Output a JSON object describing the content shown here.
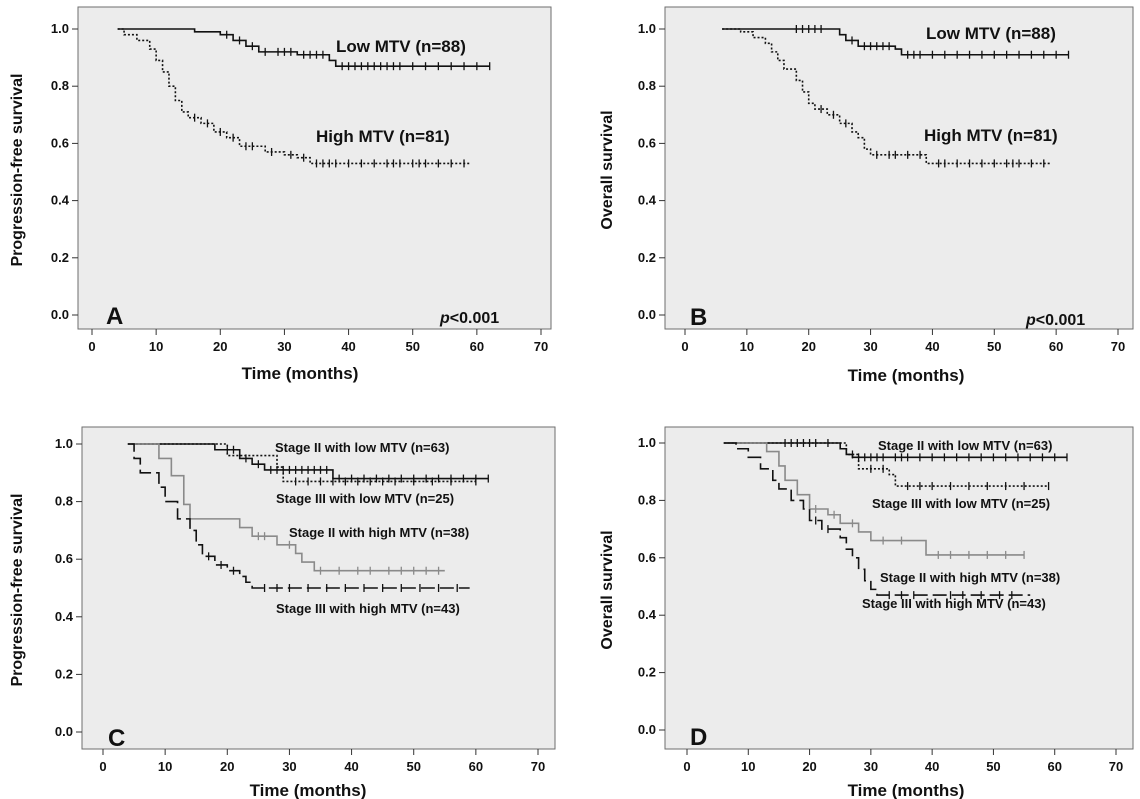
{
  "chart_data": [
    {
      "type": "line",
      "panel": "A",
      "ylabel": "Progression-free survival",
      "xlabel": "Time (months)",
      "xlim": [
        0,
        70
      ],
      "ylim": [
        0,
        1.0
      ],
      "xticks": [
        "0",
        "10",
        "20",
        "30",
        "40",
        "50",
        "60",
        "70"
      ],
      "yticks": [
        "0.0",
        "0.2",
        "0.4",
        "0.6",
        "0.8",
        "1.0"
      ],
      "annotation": "p<0.001",
      "series": [
        {
          "name": "Low MTV (n=88)",
          "style": "solid",
          "color": "#111111",
          "steps": [
            [
              4,
              1.0
            ],
            [
              16,
              0.99
            ],
            [
              20,
              0.98
            ],
            [
              22,
              0.96
            ],
            [
              24,
              0.94
            ],
            [
              26,
              0.92
            ],
            [
              32,
              0.91
            ],
            [
              37,
              0.89
            ],
            [
              38,
              0.87
            ],
            [
              62,
              0.87
            ]
          ],
          "censor": [
            21,
            23,
            25,
            27,
            29,
            30,
            31,
            33,
            34,
            35,
            36,
            39,
            40,
            41,
            42,
            43,
            44,
            45,
            46,
            47,
            48,
            50,
            52,
            54,
            56,
            58,
            60,
            62
          ]
        },
        {
          "name": "High MTV (n=81)",
          "style": "dotted",
          "color": "#111111",
          "steps": [
            [
              4,
              1.0
            ],
            [
              5,
              0.98
            ],
            [
              7,
              0.96
            ],
            [
              9,
              0.93
            ],
            [
              10,
              0.89
            ],
            [
              11,
              0.85
            ],
            [
              12,
              0.8
            ],
            [
              13,
              0.75
            ],
            [
              14,
              0.71
            ],
            [
              15,
              0.69
            ],
            [
              17,
              0.67
            ],
            [
              19,
              0.64
            ],
            [
              21,
              0.62
            ],
            [
              23,
              0.59
            ],
            [
              27,
              0.57
            ],
            [
              30,
              0.56
            ],
            [
              32,
              0.55
            ],
            [
              34,
              0.53
            ],
            [
              59,
              0.53
            ]
          ],
          "censor": [
            16,
            18,
            20,
            22,
            24,
            25,
            28,
            31,
            33,
            35,
            36,
            37,
            38,
            40,
            42,
            44,
            46,
            47,
            48,
            50,
            51,
            52,
            54,
            56,
            58
          ]
        }
      ]
    },
    {
      "type": "line",
      "panel": "B",
      "ylabel": "Overall survival",
      "xlabel": "Time (months)",
      "xlim": [
        0,
        70
      ],
      "ylim": [
        0,
        1.0
      ],
      "xticks": [
        "0",
        "10",
        "20",
        "30",
        "40",
        "50",
        "60",
        "70"
      ],
      "yticks": [
        "0.0",
        "0.2",
        "0.4",
        "0.6",
        "0.8",
        "1.0"
      ],
      "annotation": "p<0.001",
      "series": [
        {
          "name": "Low MTV (n=88)",
          "style": "solid",
          "color": "#111111",
          "steps": [
            [
              6,
              1.0
            ],
            [
              25,
              0.98
            ],
            [
              26,
              0.96
            ],
            [
              28,
              0.94
            ],
            [
              34,
              0.93
            ],
            [
              35,
              0.91
            ],
            [
              62,
              0.91
            ]
          ],
          "censor": [
            18,
            19,
            20,
            21,
            22,
            27,
            29,
            30,
            31,
            32,
            33,
            36,
            37,
            38,
            40,
            42,
            44,
            46,
            48,
            50,
            52,
            54,
            56,
            58,
            60,
            62
          ]
        },
        {
          "name": "High MTV (n=81)",
          "style": "dotted",
          "color": "#111111",
          "steps": [
            [
              6,
              1.0
            ],
            [
              9,
              0.99
            ],
            [
              11,
              0.97
            ],
            [
              13,
              0.95
            ],
            [
              14,
              0.92
            ],
            [
              15,
              0.89
            ],
            [
              16,
              0.86
            ],
            [
              18,
              0.82
            ],
            [
              19,
              0.78
            ],
            [
              20,
              0.74
            ],
            [
              21,
              0.72
            ],
            [
              23,
              0.7
            ],
            [
              25,
              0.67
            ],
            [
              27,
              0.64
            ],
            [
              28,
              0.62
            ],
            [
              29,
              0.58
            ],
            [
              30,
              0.56
            ],
            [
              39,
              0.53
            ],
            [
              59,
              0.53
            ]
          ],
          "censor": [
            22,
            24,
            26,
            31,
            33,
            34,
            36,
            38,
            41,
            42,
            44,
            46,
            48,
            50,
            52,
            53,
            54,
            56,
            58
          ]
        }
      ]
    },
    {
      "type": "line",
      "panel": "C",
      "ylabel": "Progression-free survival",
      "xlabel": "Time (months)",
      "xlim": [
        0,
        70
      ],
      "ylim": [
        0,
        1.0
      ],
      "xticks": [
        "0",
        "10",
        "20",
        "30",
        "40",
        "50",
        "60",
        "70"
      ],
      "yticks": [
        "0.0",
        "0.2",
        "0.4",
        "0.6",
        "0.8",
        "1.0"
      ],
      "series": [
        {
          "name": "Stage II with low MTV (n=63)",
          "style": "solid",
          "color": "#111111",
          "steps": [
            [
              4,
              1.0
            ],
            [
              18,
              0.98
            ],
            [
              22,
              0.95
            ],
            [
              24,
              0.93
            ],
            [
              26,
              0.91
            ],
            [
              37,
              0.88
            ],
            [
              62,
              0.88
            ]
          ],
          "censor": [
            20,
            21,
            23,
            25,
            27,
            28,
            29,
            30,
            31,
            32,
            33,
            34,
            35,
            36,
            38,
            40,
            42,
            44,
            46,
            48,
            50,
            52,
            54,
            56,
            58,
            60,
            62
          ]
        },
        {
          "name": "Stage III with low MTV (n=25)",
          "style": "dotted",
          "color": "#111111",
          "steps": [
            [
              4,
              1.0
            ],
            [
              20,
              0.96
            ],
            [
              28,
              0.92
            ],
            [
              29,
              0.87
            ],
            [
              60,
              0.87
            ]
          ],
          "censor": [
            31,
            33,
            35,
            37,
            39,
            41,
            43,
            45,
            47,
            50,
            53,
            56,
            60
          ]
        },
        {
          "name": "Stage II with high MTV (n=38)",
          "style": "solid",
          "color": "#8a8a8a",
          "steps": [
            [
              4,
              1.0
            ],
            [
              9,
              0.95
            ],
            [
              11,
              0.89
            ],
            [
              13,
              0.79
            ],
            [
              14,
              0.74
            ],
            [
              22,
              0.71
            ],
            [
              24,
              0.68
            ],
            [
              28,
              0.65
            ],
            [
              31,
              0.62
            ],
            [
              32,
              0.59
            ],
            [
              34,
              0.56
            ],
            [
              55,
              0.56
            ]
          ],
          "censor": [
            25,
            26,
            30,
            35,
            38,
            41,
            43,
            46,
            48,
            50,
            52,
            54
          ]
        },
        {
          "name": "Stage III with high MTV (n=43)",
          "style": "dashed",
          "color": "#111111",
          "steps": [
            [
              4,
              1.0
            ],
            [
              5,
              0.95
            ],
            [
              6,
              0.9
            ],
            [
              9,
              0.85
            ],
            [
              10,
              0.8
            ],
            [
              12,
              0.74
            ],
            [
              14,
              0.7
            ],
            [
              15,
              0.65
            ],
            [
              16,
              0.61
            ],
            [
              18,
              0.58
            ],
            [
              20,
              0.56
            ],
            [
              22,
              0.54
            ],
            [
              23,
              0.52
            ],
            [
              24,
              0.5
            ],
            [
              59,
              0.5
            ]
          ],
          "censor": [
            17,
            19,
            21,
            26,
            28,
            30,
            33,
            36,
            39,
            42,
            45,
            48,
            51,
            54,
            57
          ]
        }
      ]
    },
    {
      "type": "line",
      "panel": "D",
      "ylabel": "Overall survival",
      "xlabel": "Time (months)",
      "xlim": [
        0,
        70
      ],
      "ylim": [
        0,
        1.0
      ],
      "xticks": [
        "0",
        "10",
        "20",
        "30",
        "40",
        "50",
        "60",
        "70"
      ],
      "yticks": [
        "0.0",
        "0.2",
        "0.4",
        "0.6",
        "0.8",
        "1.0"
      ],
      "series": [
        {
          "name": "Stage II with low MTV (n=63)",
          "style": "solid",
          "color": "#111111",
          "steps": [
            [
              6,
              1.0
            ],
            [
              25,
              0.98
            ],
            [
              26,
              0.96
            ],
            [
              27,
              0.95
            ],
            [
              62,
              0.95
            ]
          ],
          "censor": [
            16,
            17,
            18,
            19,
            20,
            21,
            23,
            28,
            29,
            30,
            31,
            32,
            34,
            35,
            36,
            38,
            40,
            42,
            44,
            46,
            48,
            50,
            52,
            54,
            56,
            58,
            60,
            62
          ]
        },
        {
          "name": "Stage III with low MTV (n=25)",
          "style": "dotted",
          "color": "#111111",
          "steps": [
            [
              6,
              1.0
            ],
            [
              26,
              0.96
            ],
            [
              28,
              0.91
            ],
            [
              33,
              0.89
            ],
            [
              34,
              0.85
            ],
            [
              59,
              0.85
            ]
          ],
          "censor": [
            27,
            30,
            32,
            36,
            38,
            40,
            43,
            46,
            49,
            52,
            55,
            59
          ]
        },
        {
          "name": "Stage II with high MTV (n=38)",
          "style": "solid",
          "color": "#8a8a8a",
          "steps": [
            [
              6,
              1.0
            ],
            [
              13,
              0.97
            ],
            [
              15,
              0.92
            ],
            [
              16,
              0.87
            ],
            [
              18,
              0.82
            ],
            [
              20,
              0.77
            ],
            [
              23,
              0.75
            ],
            [
              25,
              0.72
            ],
            [
              28,
              0.69
            ],
            [
              30,
              0.66
            ],
            [
              39,
              0.61
            ],
            [
              55,
              0.61
            ]
          ],
          "censor": [
            21,
            24,
            27,
            32,
            35,
            41,
            43,
            46,
            49,
            52,
            55
          ]
        },
        {
          "name": "Stage III with high MTV (n=43)",
          "style": "dashed",
          "color": "#111111",
          "steps": [
            [
              6,
              1.0
            ],
            [
              8,
              0.98
            ],
            [
              10,
              0.95
            ],
            [
              12,
              0.91
            ],
            [
              14,
              0.87
            ],
            [
              15,
              0.84
            ],
            [
              17,
              0.8
            ],
            [
              19,
              0.77
            ],
            [
              20,
              0.73
            ],
            [
              22,
              0.7
            ],
            [
              25,
              0.67
            ],
            [
              26,
              0.63
            ],
            [
              27,
              0.6
            ],
            [
              28,
              0.56
            ],
            [
              29,
              0.52
            ],
            [
              30,
              0.49
            ],
            [
              31,
              0.47
            ],
            [
              56,
              0.47
            ]
          ],
          "censor": [
            21,
            23,
            33,
            35,
            37,
            43,
            45,
            48,
            51,
            53
          ]
        }
      ]
    }
  ]
}
